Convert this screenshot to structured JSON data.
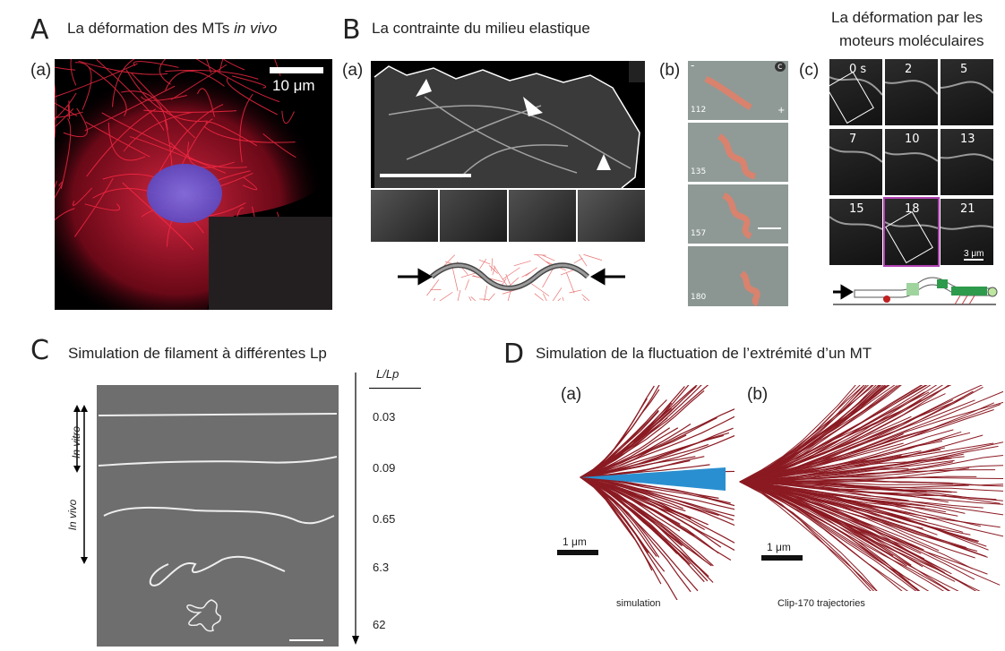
{
  "panelA": {
    "letter": "A",
    "title_prefix": "La  déformation des MTs ",
    "title_italic": "in vivo",
    "sub": "(a)",
    "scalebar": "10 μm"
  },
  "panelB": {
    "letter": "B",
    "title": "La contrainte du milieu elastique",
    "sub_a": "(a)",
    "sub_b": "(b)",
    "sub_c": "(c)",
    "right_title_line1": "La déformation par les",
    "right_title_line2": "moteurs moléculaires",
    "frames": [
      "0 s",
      "2",
      "5",
      "7",
      "10",
      "13",
      "15",
      "18",
      "21"
    ],
    "scalebar_c": "3 μm",
    "strip_times": [
      "112",
      "135",
      "157",
      "180"
    ],
    "strip_badge": "c",
    "strip_plus": "+",
    "strip_minus": "-"
  },
  "panelC": {
    "letter": "C",
    "title": "Simulation de filament à différentes Lp",
    "in_vitro": "In vitro",
    "in_vivo": "In vivo",
    "ratio_header": "L/Lp",
    "ratios": [
      "0.03",
      "0.09",
      "0.65",
      "6.3",
      "62"
    ]
  },
  "panelD": {
    "letter": "D",
    "title": "Simulation de la fluctuation de l’extrémité d’un MT",
    "sub_a": "(a)",
    "sub_b": "(b)",
    "scale_a": "1 μm",
    "scale_b": "1 μm",
    "caption_a": "simulation",
    "caption_b": "Clip-170 trajectories"
  },
  "colors": {
    "microtubule_red": "#e8203c",
    "nucleus_blue": "#6a5fd8",
    "trajectory_red": "#8b1a22",
    "cone_blue": "#2a8fd0",
    "frame_magenta": "#b040b0"
  }
}
